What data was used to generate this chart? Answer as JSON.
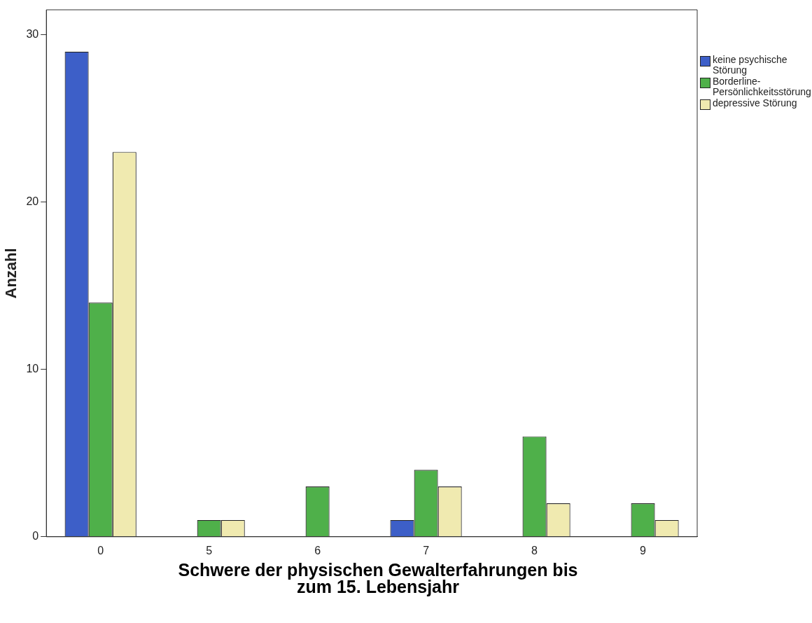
{
  "chart_data": {
    "type": "bar",
    "xlabel": "Schwere der physischen Gewalterfahrungen bis zum 15. Lebensjahr",
    "ylabel": "Anzahl",
    "categories": [
      "0",
      "5",
      "6",
      "7",
      "8",
      "9"
    ],
    "series": [
      {
        "name": "keine psychische Störung",
        "color": "#3d5fc8",
        "values": [
          29,
          0,
          0,
          1,
          0,
          0
        ]
      },
      {
        "name": "Borderline-Persönlichkeitsstörung",
        "color": "#4fb04a",
        "values": [
          14,
          1,
          3,
          4,
          6,
          2
        ]
      },
      {
        "name": "depressive Störung",
        "color": "#f0eab0",
        "values": [
          23,
          1,
          0,
          3,
          2,
          1
        ]
      }
    ],
    "ylim": [
      0,
      31.5
    ],
    "yticks": [
      0,
      10,
      20,
      30
    ],
    "grid": false,
    "legend": "top right"
  }
}
